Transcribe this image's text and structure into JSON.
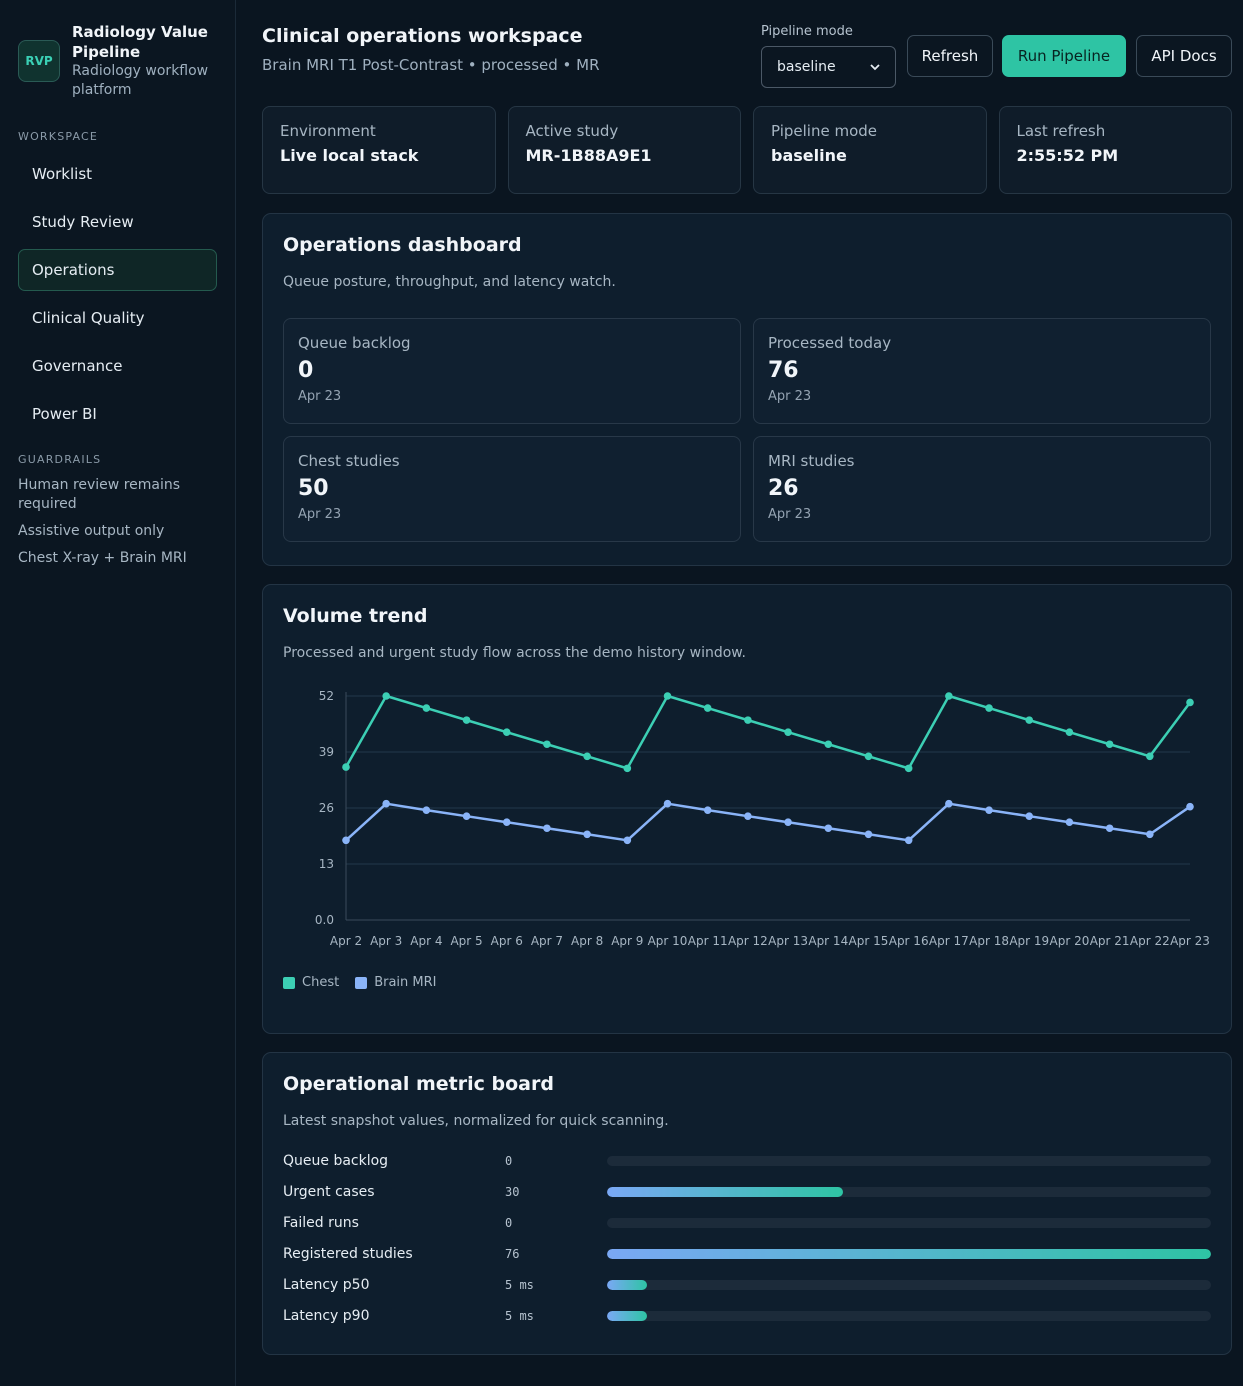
{
  "brand": {
    "logo": "RVP",
    "title": "Radiology Value Pipeline",
    "subtitle": "Radiology workflow platform"
  },
  "sidebar": {
    "workspace_label": "WORKSPACE",
    "items": [
      {
        "label": "Worklist",
        "active": false
      },
      {
        "label": "Study Review",
        "active": false
      },
      {
        "label": "Operations",
        "active": true
      },
      {
        "label": "Clinical Quality",
        "active": false
      },
      {
        "label": "Governance",
        "active": false
      },
      {
        "label": "Power BI",
        "active": false
      }
    ],
    "guardrails_label": "GUARDRAILS",
    "guardrails": [
      "Human review remains required",
      "Assistive output only",
      "Chest X-ray + Brain MRI"
    ]
  },
  "header": {
    "title": "Clinical operations workspace",
    "subtitle": "Brain MRI T1 Post-Contrast • processed • MR",
    "pipeline_mode_label": "Pipeline mode",
    "pipeline_mode_value": "baseline",
    "refresh_label": "Refresh",
    "run_label": "Run Pipeline",
    "api_label": "API Docs"
  },
  "stats": [
    {
      "label": "Environment",
      "value": "Live local stack"
    },
    {
      "label": "Active study",
      "value": "MR-1B88A9E1"
    },
    {
      "label": "Pipeline mode",
      "value": "baseline"
    },
    {
      "label": "Last refresh",
      "value": "2:55:52 PM"
    }
  ],
  "dashboard": {
    "title": "Operations dashboard",
    "desc": "Queue posture, throughput, and latency watch.",
    "kpis": [
      {
        "label": "Queue backlog",
        "value": "0",
        "date": "Apr 23"
      },
      {
        "label": "Processed today",
        "value": "76",
        "date": "Apr 23"
      },
      {
        "label": "Chest studies",
        "value": "50",
        "date": "Apr 23"
      },
      {
        "label": "MRI studies",
        "value": "26",
        "date": "Apr 23"
      }
    ]
  },
  "trend": {
    "title": "Volume trend",
    "desc": "Processed and urgent study flow across the demo history window."
  },
  "chart_data": {
    "type": "line",
    "x": [
      "Apr 2",
      "Apr 3",
      "Apr 4",
      "Apr 5",
      "Apr 6",
      "Apr 7",
      "Apr 8",
      "Apr 9",
      "Apr 10",
      "Apr 11",
      "Apr 12",
      "Apr 13",
      "Apr 14",
      "Apr 15",
      "Apr 16",
      "Apr 17",
      "Apr 18",
      "Apr 19",
      "Apr 20",
      "Apr 21",
      "Apr 22",
      "Apr 23"
    ],
    "series": [
      {
        "name": "Chest",
        "color": "#3ccfb4",
        "values": [
          35.5,
          52,
          49.2,
          46.4,
          43.6,
          40.8,
          38,
          35.2,
          52,
          49.2,
          46.4,
          43.6,
          40.8,
          38,
          35.2,
          52,
          49.2,
          46.4,
          43.6,
          40.8,
          38,
          50.5
        ]
      },
      {
        "name": "Brain MRI",
        "color": "#8ab4f8",
        "values": [
          18.5,
          27,
          25.5,
          24.1,
          22.7,
          21.3,
          19.9,
          18.5,
          27,
          25.5,
          24.1,
          22.7,
          21.3,
          19.9,
          18.5,
          27,
          25.5,
          24.1,
          22.7,
          21.3,
          19.9,
          26.3
        ]
      }
    ],
    "yticks": [
      "0.0",
      "13",
      "26",
      "39",
      "52"
    ],
    "ylim": [
      0,
      52
    ],
    "legend": "bottom-left",
    "grid": true
  },
  "metrics": {
    "title": "Operational metric board",
    "desc": "Latest snapshot values, normalized for quick scanning.",
    "rows": [
      {
        "label": "Queue backlog",
        "value": "0",
        "fill": 0
      },
      {
        "label": "Urgent cases",
        "value": "30",
        "fill": 0.39
      },
      {
        "label": "Failed runs",
        "value": "0",
        "fill": 0
      },
      {
        "label": "Registered studies",
        "value": "76",
        "fill": 1.0
      },
      {
        "label": "Latency p50",
        "value": "5 ms",
        "fill": 0.066
      },
      {
        "label": "Latency p90",
        "value": "5 ms",
        "fill": 0.066
      }
    ]
  }
}
